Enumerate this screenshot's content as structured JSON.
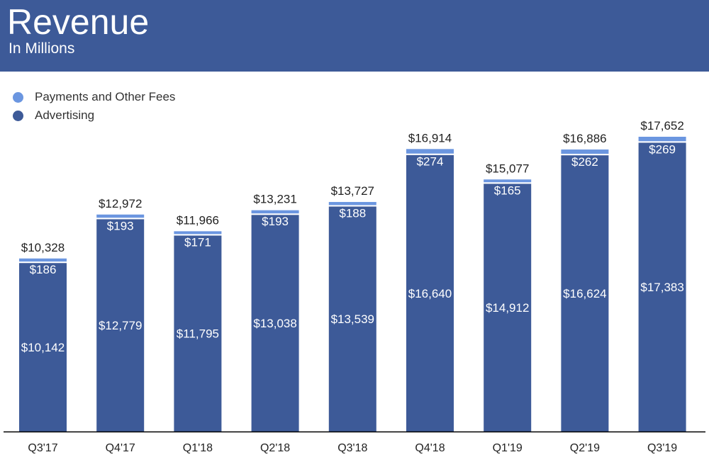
{
  "header": {
    "title": "Revenue",
    "subtitle": "In Millions"
  },
  "colors": {
    "header_bg": "#3d5a98",
    "advertising": "#3d5a98",
    "payments": "#6b96e0",
    "axis": "#000000"
  },
  "chart_data": {
    "type": "bar",
    "stacked": true,
    "title": "Revenue",
    "subtitle": "In Millions",
    "xlabel": "",
    "ylabel": "",
    "ylim": [
      0,
      17652
    ],
    "grid": false,
    "legend": "top-left",
    "categories": [
      "Q3'17",
      "Q4'17",
      "Q1'18",
      "Q2'18",
      "Q3'18",
      "Q4'18",
      "Q1'19",
      "Q2'19",
      "Q3'19"
    ],
    "series": [
      {
        "name": "Advertising",
        "values": [
          10142,
          12779,
          11795,
          13038,
          13539,
          16640,
          14912,
          16624,
          17383
        ],
        "labels": [
          "$10,142",
          "$12,779",
          "$11,795",
          "$13,038",
          "$13,539",
          "$16,640",
          "$14,912",
          "$16,624",
          "$17,383"
        ]
      },
      {
        "name": "Payments and Other Fees",
        "values": [
          186,
          193,
          171,
          193,
          188,
          274,
          165,
          262,
          269
        ],
        "labels": [
          "$186",
          "$193",
          "$171",
          "$193",
          "$188",
          "$274",
          "$165",
          "$262",
          "$269"
        ]
      }
    ],
    "totals": [
      10328,
      12972,
      11966,
      13231,
      13727,
      16914,
      15077,
      16886,
      17652
    ],
    "total_labels": [
      "$10,328",
      "$12,972",
      "$11,966",
      "$13,231",
      "$13,727",
      "$16,914",
      "$15,077",
      "$16,886",
      "$17,652"
    ]
  }
}
